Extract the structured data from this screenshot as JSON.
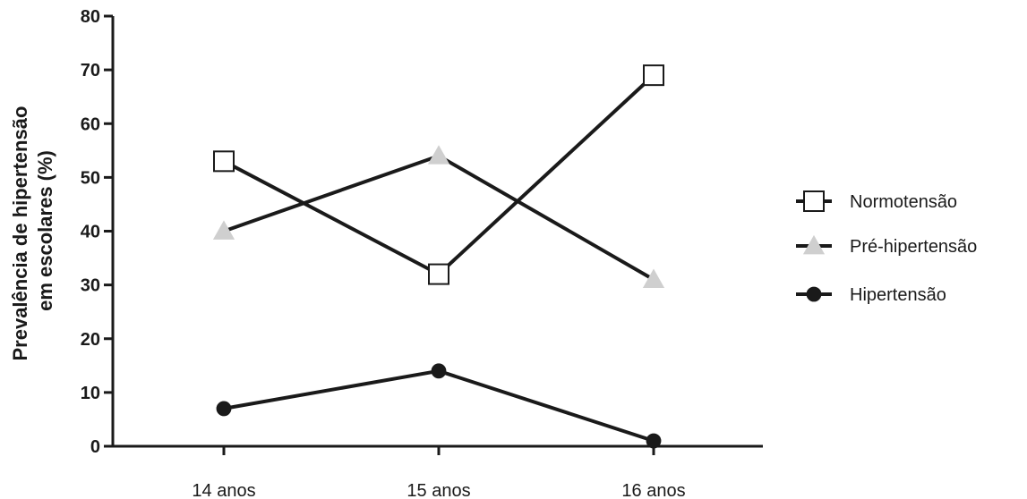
{
  "chart_data": {
    "type": "line",
    "categories": [
      "14 anos",
      "15 anos",
      "16 anos"
    ],
    "ylabel_lines": [
      "Prevalência de hipertensão",
      "em escolares (%)"
    ],
    "xlabel": "",
    "ylim": [
      0,
      80
    ],
    "yticks": [
      "0",
      "10",
      "20",
      "30",
      "40",
      "50",
      "60",
      "70",
      "80"
    ],
    "grid": false,
    "legend_position": "right",
    "series": [
      {
        "name": "Normotensão",
        "values": [
          53,
          32,
          69
        ],
        "marker": "open-square",
        "color": "#1a1a1a",
        "marker_fill": "#ffffff"
      },
      {
        "name": "Pré-hipertensão",
        "values": [
          40,
          54,
          31
        ],
        "marker": "triangle",
        "color": "#1a1a1a",
        "marker_fill": "#cfcfcf"
      },
      {
        "name": "Hipertensão",
        "values": [
          7,
          14,
          1
        ],
        "marker": "filled-circle",
        "color": "#1a1a1a",
        "marker_fill": "#1a1a1a"
      }
    ]
  }
}
